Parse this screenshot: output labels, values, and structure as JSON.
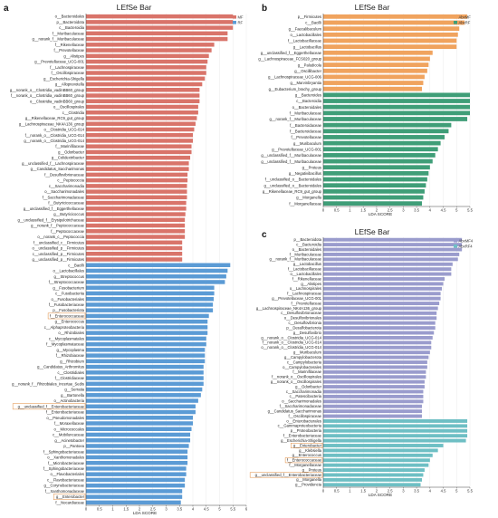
{
  "chart_data": [
    {
      "panel": "a",
      "type": "bar",
      "orientation": "horizontal",
      "title": "LEfSe Bar",
      "xlabel": "LDA SCORE",
      "xlim": [
        0,
        6
      ],
      "xticks": [
        0,
        0.5,
        1,
        1.5,
        2,
        2.5,
        3,
        3.5,
        4,
        4.5,
        5,
        5.5,
        6
      ],
      "legend": {
        "position": "top-right",
        "entries": [
          {
            "name": "MF",
            "color": "#d9746a"
          },
          {
            "name": "RF",
            "color": "#5b9bd5"
          }
        ]
      },
      "highlighted": [
        "f__Enterococcaceae",
        "g__unclassified_f__Enterobacteriaceae",
        "g__Enterobacter"
      ],
      "series": [
        {
          "name": "MF",
          "color": "#d9746a",
          "labels": [
            "o__Bacteroidales",
            "p__Bacteroidota",
            "c__Bacteroidia",
            "f__Muribaculaceae",
            "g__norank_f__Muribaculaceae",
            "f__Rikenellaceae",
            "f__Prevotellaceae",
            "g__Alistipes",
            "g__Prevotellaceae_UCG-001",
            "f__Lachnospiraceae",
            "f__Oscillospiraceae",
            "g__Escherichia-Shigella",
            "g__Alloprevotella",
            "g__norank_o__Clostridia_vadinBB60_group",
            "f__norank_o__Clostridia_vadinBB60_group",
            "o__Clostridia_vadinBB60_group",
            "o__Oscillospirales",
            "c__Clostridia",
            "g__Rikenellaceae_RC9_gut_group",
            "g__Lachnospiraceae_NK4A136_group",
            "o__Clostridia_UCG-014",
            "f__norank_o__Clostridia_UCG-014",
            "g__norank_o__Clostridia_UCG-014",
            "f__Marinifilaceae",
            "g__Odoribacter",
            "g__Colidextribacter",
            "g__unclassified_f__Lachnospiraceae",
            "g__Candidatus_Saccharimonas",
            "f__Desulfovibrionaceae",
            "c__Peptococcia",
            "c__Saccharimonadia",
            "o__Saccharimonadales",
            "f__Saccharimonadaceae",
            "f__Butyricicoccaceae",
            "g__unclassified_f__Eggerthellaceae",
            "g__Butyricicoccus",
            "g__unclassified_f__Erysipelotrichaceae",
            "g__norank_f__Peptococcaceae",
            "f__Peptococcaceae",
            "o__norank_c__Peptococcia",
            "f__unclassified_c__Firmicutes",
            "o__unclassified_p__Firmicutes",
            "c__unclassified_p__Firmicutes",
            "g__unclassified_p__Firmicutes"
          ],
          "values": [
            5.5,
            5.5,
            5.5,
            5.3,
            5.3,
            4.8,
            4.7,
            4.6,
            4.55,
            4.5,
            4.5,
            4.45,
            4.35,
            4.25,
            4.25,
            4.25,
            4.2,
            4.2,
            4.15,
            4.1,
            4.05,
            4.0,
            4.0,
            3.95,
            3.95,
            3.9,
            3.85,
            3.85,
            3.8,
            3.8,
            3.78,
            3.78,
            3.78,
            3.75,
            3.75,
            3.72,
            3.7,
            3.7,
            3.7,
            3.7,
            3.6,
            3.6,
            3.6,
            3.6
          ]
        },
        {
          "name": "RF",
          "color": "#5b9bd5",
          "labels": [
            "c__Bacilli",
            "o__Lactobacillales",
            "g__Streptococcus",
            "f__Streptococcaceae",
            "g__Fusobacterium",
            "c__Fusobacteriia",
            "o__Fusobacteriales",
            "f__Fusobacteriaceae",
            "p__Fusobacteriota",
            "f__Enterococcaceae",
            "g__Enterococcus",
            "c__Alphaproteobacteria",
            "o__Rhizobiales",
            "c__Mycoplasmatales",
            "f__Mycoplasmataceae",
            "g__Mycoplasma",
            "f__Rhizobiaceae",
            "g__Rhizobium",
            "g__Candidatus_Arthromitus",
            "c__Clostridiales",
            "f__Clostridiaceae",
            "g__norank_f__Rhizobiales_Incertae_Sedis",
            "g__Serratia",
            "g__Bartonella",
            "o__Actinobacteria",
            "g__unclassified_f__Enterobacteriaceae",
            "f__Enterobacteriaceae",
            "o__Pseudomonadales",
            "f__Moraxellaceae",
            "o__Micrococcales",
            "c__Mobiluncaceae",
            "g__Acinetobacter",
            "p__Pantoea",
            "f__Sphingobacteriaceae",
            "o__Xanthomonadales",
            "f__Microbacteriaceae",
            "f__Sphingobacteriaceae",
            "o__Flavobacteriales",
            "c__Flavobacteriaceae",
            "g__Corynebacteriaceae",
            "f__Xanthomonadaceae",
            "g__Enterobacter",
            "f__Nocardiaceae"
          ],
          "values": [
            5.4,
            5.3,
            5.25,
            5.2,
            4.8,
            4.8,
            4.78,
            4.75,
            4.75,
            4.6,
            4.55,
            4.55,
            4.55,
            4.5,
            4.5,
            4.45,
            4.45,
            4.45,
            4.4,
            4.4,
            4.4,
            4.4,
            4.35,
            4.3,
            4.2,
            4.1,
            4.1,
            4.0,
            4.0,
            3.95,
            3.9,
            3.9,
            3.85,
            3.8,
            3.8,
            3.8,
            3.75,
            3.75,
            3.7,
            3.7,
            3.6,
            3.6,
            3.55
          ]
        }
      ]
    },
    {
      "panel": "b",
      "type": "bar",
      "orientation": "horizontal",
      "title": "LEfSe Bar",
      "xlabel": "LDA SCORE",
      "xlim": [
        0,
        5.5
      ],
      "xticks": [
        0,
        0.5,
        1,
        1.5,
        2,
        2.5,
        3,
        3.5,
        4,
        4.5,
        5,
        5.5
      ],
      "legend": {
        "position": "top-right",
        "entries": [
          {
            "name": "AbxMF",
            "color": "#f0a35e"
          },
          {
            "name": "AbxRF",
            "color": "#3f9e78"
          }
        ]
      },
      "series": [
        {
          "name": "AbxMF",
          "color": "#f0a35e",
          "labels": [
            "p__Firmicutes",
            "c__Bacilli",
            "g__Faecalibaculum",
            "o__Lactobacillales",
            "f__Lactobacillaceae",
            "g__Lactobacillus",
            "g__unclassified_f__Eggerthellaceae",
            "g__Lachnospiraceae_FCS020_group",
            "g__Paludicola",
            "g__Oscillibacter",
            "g__Lachnospiraceae_UCG-006",
            "g__Marvinbryantia",
            "g__Eubacterium_brachy_group"
          ],
          "values": [
            5.4,
            5.3,
            5.1,
            5.05,
            5.0,
            5.0,
            4.1,
            4.0,
            3.95,
            3.9,
            3.8,
            3.75,
            3.7
          ]
        },
        {
          "name": "AbxRF",
          "color": "#3f9e78",
          "labels": [
            "g__Bacteroides",
            "c__Bacteroidia",
            "o__Bacteroidales",
            "f__Muribaculaceae",
            "g__norank_f__Muribaculaceae",
            "f__Bacteroidaceae",
            "f__Bacteroidaceae",
            "f__Prevotellaceae",
            "g__Muribaculum",
            "g__Prevotellaceae_UCG-001",
            "g__unclassified_f__Muribaculaceae",
            "g__unclassified_f__Muribaculaceae",
            "g__Proteus",
            "g__Negativibacillus",
            "f__unclassified_o__Bacteroidales",
            "g__unclassified_o__Bacteroidales",
            "g__Rikenellaceae_RC9_gut_group",
            "g__Morganella",
            "f__Morganellaceae"
          ],
          "values": [
            5.5,
            5.5,
            5.5,
            5.5,
            5.4,
            4.8,
            4.7,
            4.55,
            4.4,
            4.3,
            4.2,
            4.1,
            4.0,
            3.95,
            3.9,
            3.85,
            3.8,
            3.75,
            3.7
          ]
        }
      ]
    },
    {
      "panel": "c",
      "type": "bar",
      "orientation": "horizontal",
      "title": "LEfSe Bar",
      "xlabel": "LDA SCORE",
      "xlim": [
        0,
        5.5
      ],
      "xticks": [
        0,
        0.5,
        1,
        1.5,
        2,
        2.5,
        3,
        3.5,
        4,
        4.5,
        5,
        5.5
      ],
      "legend": {
        "position": "top-right",
        "entries": [
          {
            "name": "AbxMF4",
            "color": "#9a9ccd"
          },
          {
            "name": "AbxRF4",
            "color": "#6ebfc4"
          }
        ]
      },
      "highlighted": [
        "g__Enterobacter",
        "f__Enterococcaceae",
        "g__unclassified_f__Enterobacteriaceae"
      ],
      "series": [
        {
          "name": "AbxMF4",
          "color": "#9a9ccd",
          "labels": [
            "p__Bacteroidota",
            "c__Bacteroidia",
            "o__Bacteroidales",
            "f__Muribaculaceae",
            "g__norank_f__Muribaculaceae",
            "g__Lactobacillus",
            "f__Lactobacillaceae",
            "o__Lactobacillales",
            "f__Rikenellaceae",
            "g__Alistipes",
            "o__Lachnospirales",
            "f__Lachnospiraceae",
            "g__Prevotellaceae_UCG-001",
            "f__Prevotellaceae",
            "g__Lachnospiraceae_NK4A136_group",
            "c__Desulfovibrionaceae",
            "o__Desulfovibrionales",
            "c__Desulfovibrionia",
            "p__Desulfobacterota",
            "g__Desulfovibrio",
            "g__norank_o__Clostridia_UCG-014",
            "f__norank_o__Clostridia_UCG-014",
            "o__norank_o__Clostridia_UCG-014",
            "g__Muribaculum",
            "g__Campylobacterota",
            "c__Campylobacteria",
            "o__Campylobacterales",
            "f__Marinifilaceae",
            "f__norank_o__Oscillospirales",
            "g__norank_o__Oscillospirales",
            "g__Odoribacter",
            "c__Saccharimonadia",
            "c__Patescibacteria",
            "o__Saccharimonadales",
            "f__Saccharimonadaceae",
            "g__Candidatus_Saccharimonas",
            "f__Oscillospiraceae"
          ],
          "values": [
            5.2,
            5.2,
            5.2,
            5.1,
            5.05,
            4.85,
            4.8,
            4.8,
            4.55,
            4.5,
            4.45,
            4.4,
            4.4,
            4.35,
            4.3,
            4.25,
            4.25,
            4.2,
            4.2,
            4.15,
            4.1,
            4.05,
            4.05,
            4.0,
            3.95,
            3.9,
            3.9,
            3.85,
            3.85,
            3.8,
            3.8,
            3.75,
            3.75,
            3.75,
            3.7,
            3.7,
            3.7
          ]
        },
        {
          "name": "AbxRF4",
          "color": "#6ebfc4",
          "labels": [
            "o__Enterobacterales",
            "c__Gammaproteobacteria",
            "p__Proteobacteria",
            "f__Enterobacteriaceae",
            "g__Escherichia-Shigella",
            "g__Enterobacter",
            "g__Klebsiella",
            "g__Enterococcus",
            "f__Enterococcaceae",
            "f__Morganellaceae",
            "g__Proteus",
            "g__unclassified_f__Enterobacteriaceae",
            "g__Morganella",
            "g__Providencia"
          ],
          "values": [
            5.4,
            5.4,
            5.4,
            5.4,
            5.35,
            4.5,
            4.3,
            4.1,
            4.0,
            3.95,
            3.8,
            3.75,
            3.7,
            3.65
          ]
        }
      ]
    }
  ]
}
